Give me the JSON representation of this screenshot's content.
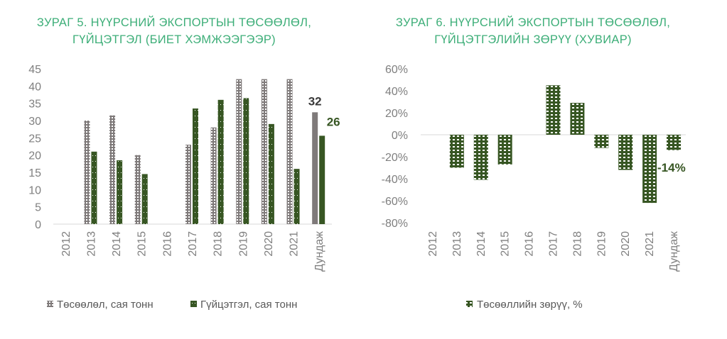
{
  "colors": {
    "title": "#3dae78",
    "gray": "#7f7a7a",
    "green": "#375623",
    "axis": "#d9d9d9"
  },
  "chart_data": [
    {
      "type": "bar",
      "title": "ЗУРАГ 5. НҮҮРСНИЙ ЭКСПОРТЫН ТӨСӨӨЛӨЛ, ГҮЙЦЭТГЭЛ (БИЕТ ХЭМЖЭЭГЭЭР)",
      "title_lines": [
        "ЗУРАГ 5. НҮҮРСНИЙ ЭКСПОРТЫН ТӨСӨӨЛӨЛ,",
        "ГҮЙЦЭТГЭЛ (БИЕТ ХЭМЖЭЭГЭЭР)"
      ],
      "categories": [
        "2012",
        "2013",
        "2014",
        "2015",
        "2016",
        "2017",
        "2018",
        "2019",
        "2020",
        "2021",
        "Дундаж"
      ],
      "series": [
        {
          "name": "Төсөөлөл, сая тонн",
          "values": [
            null,
            30,
            31.5,
            20,
            null,
            23,
            28,
            42,
            42,
            42,
            32.4
          ]
        },
        {
          "name": "Гүйцэтгэл, сая тонн",
          "values": [
            null,
            21,
            18.5,
            14.5,
            null,
            33.5,
            36,
            36.5,
            29,
            16,
            25.6
          ]
        }
      ],
      "data_labels": {
        "Төсөөлөл": "32",
        "Гүйцэтгэл": "26"
      },
      "ylim": [
        0,
        45
      ],
      "yticks": [
        "0",
        "5",
        "10",
        "15",
        "20",
        "25",
        "30",
        "35",
        "40",
        "45"
      ],
      "legend": "bottom"
    },
    {
      "type": "bar",
      "title": "ЗУРАГ 6. НҮҮРСНИЙ ЭКСПОРТЫН ТӨСӨӨЛӨЛ, ГҮЙЦЭТГЭЛИЙН ЗӨРҮҮ (ХУВИАР)",
      "title_lines": [
        "ЗУРАГ 6. НҮҮРСНИЙ ЭКСПОРТЫН ТӨСӨӨЛӨЛ,",
        "ГҮЙЦЭТГЭЛИЙН ЗӨРҮҮ (ХУВИАР)"
      ],
      "categories": [
        "2012",
        "2013",
        "2014",
        "2015",
        "2016",
        "2017",
        "2018",
        "2019",
        "2020",
        "2021",
        "Дундаж"
      ],
      "series": [
        {
          "name": "Төсөөллийн зөрүү, %",
          "values": [
            null,
            -30,
            -41,
            -27,
            null,
            45,
            29,
            -12,
            -32,
            -62,
            -14
          ]
        }
      ],
      "data_label": "-14%",
      "ylim": [
        -80,
        60
      ],
      "yticks": [
        "-80%",
        "-60%",
        "-40%",
        "-20%",
        "0%",
        "20%",
        "40%",
        "60%"
      ],
      "legend": "bottom"
    }
  ]
}
